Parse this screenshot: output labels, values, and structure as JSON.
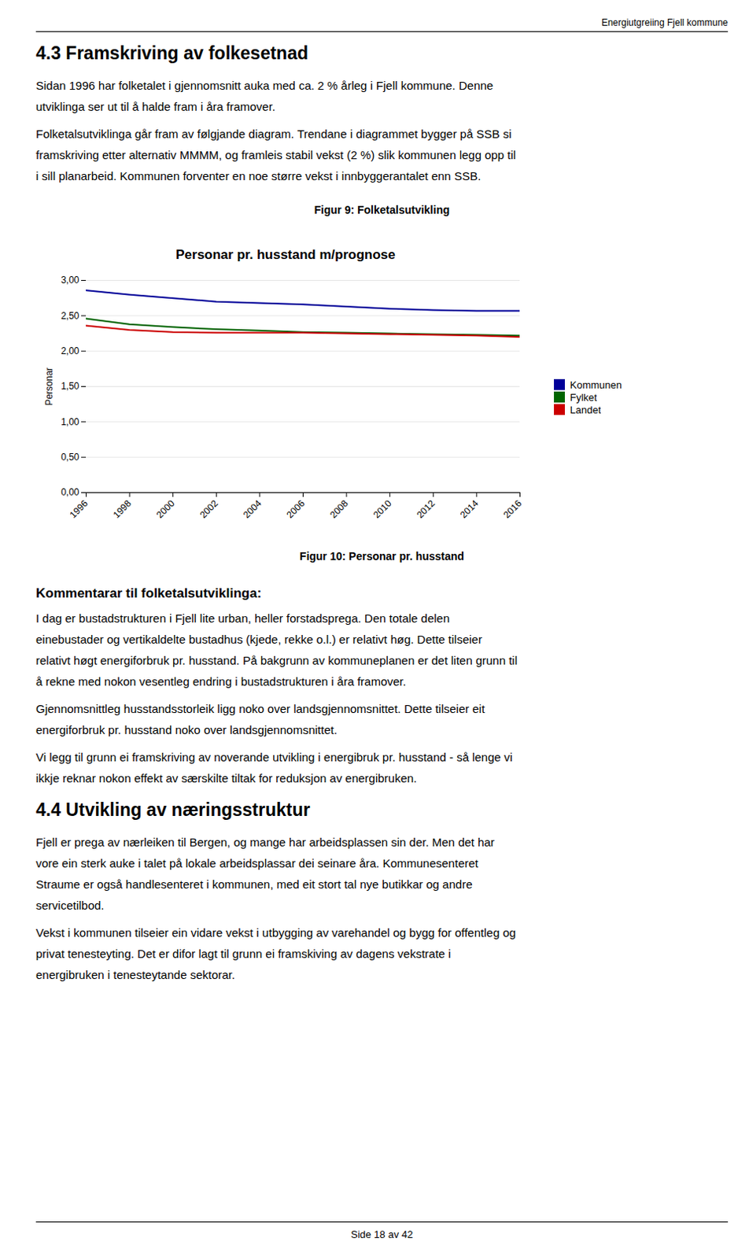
{
  "page": {
    "header": "Energiutgreiing Fjell kommune",
    "footer": "Side 18 av 42",
    "before": [
      {
        "heading": "4.3  Framskriving av folkesetnad"
      },
      {
        "paragraph": [
          "Sidan 1996 har folketalet i gjennomsnitt auka med ca. 2 % årleg i Fjell kommune. Denne",
          "utviklinga ser ut til å halde fram i åra framover."
        ]
      },
      {
        "paragraph": [
          "Folketalsutviklinga går fram av følgjande diagram. Trendane i diagrammet bygger på SSB si",
          "framskriving etter alternativ MMMM, og framleis stabil vekst (2 %) slik kommunen legg opp til",
          "i sill planarbeid. Kommunen forventer en noe større vekst i innbyggerantalet enn SSB."
        ]
      },
      {
        "caption": "Figur 9: Folketalsutvikling"
      }
    ],
    "after": [
      {
        "caption": "Figur 10: Personar pr. husstand"
      },
      {
        "subheading": "Kommentarar til folketalsutviklinga:"
      },
      {
        "paragraph": [
          "I dag er bustadstrukturen i Fjell lite urban, heller forstadsprega. Den totale delen",
          "einebustader og vertikaldelte bustadhus (kjede, rekke o.l.) er relativt høg. Dette tilseier",
          "relativt høgt energiforbruk pr. husstand. På bakgrunn av kommuneplanen er det liten grunn til",
          "å rekne med nokon vesentleg endring i bustadstrukturen i åra framover."
        ]
      },
      {
        "paragraph": [
          "Gjennomsnittleg husstandsstorleik ligg noko over landsgjennomsnittet. Dette tilseier eit",
          "energiforbruk pr. husstand noko over landsgjennomsnittet."
        ]
      },
      {
        "paragraph": [
          "Vi legg til grunn ei framskriving av noverande utvikling i energibruk pr. husstand - så lenge vi",
          "ikkje reknar nokon effekt av særskilte tiltak for reduksjon av energibruken."
        ]
      },
      {
        "heading": "4.4  Utvikling av næringsstruktur"
      },
      {
        "paragraph": [
          "Fjell er prega av nærleiken til Bergen, og mange har arbeidsplassen sin der. Men det har",
          "vore ein sterk auke i talet på lokale arbeidsplassar dei seinare åra. Kommunesenteret",
          "Straume er også handlesenteret i kommunen, med eit stort tal nye butikkar og andre",
          "servicetilbod."
        ]
      },
      {
        "paragraph": [
          "Vekst i kommunen tilseier ein vidare vekst i utbygging av varehandel og bygg for offentleg og",
          "privat tenesteyting. Det er difor lagt til grunn ei framskiving av dagens vekstrate i",
          "energibruken i tenesteytande sektorar."
        ]
      }
    ]
  },
  "chart_data": {
    "type": "line",
    "title": "Personar pr. husstand m/prognose",
    "ylabel": "Personar",
    "x": [
      1996,
      1998,
      2000,
      2002,
      2004,
      2006,
      2008,
      2010,
      2012,
      2014,
      2016
    ],
    "xlim": [
      1996,
      2016
    ],
    "xticks": [
      1996,
      1998,
      2000,
      2002,
      2004,
      2006,
      2008,
      2010,
      2012,
      2014,
      2016
    ],
    "ylim": [
      0.0,
      3.0
    ],
    "yticks": [
      {
        "value": 0.0,
        "label": "0,00"
      },
      {
        "value": 0.5,
        "label": "0,50"
      },
      {
        "value": 1.0,
        "label": "1,00"
      },
      {
        "value": 1.5,
        "label": "1,50"
      },
      {
        "value": 2.0,
        "label": "2,00"
      },
      {
        "value": 2.5,
        "label": "2,50"
      },
      {
        "value": 3.0,
        "label": "3,00"
      }
    ],
    "grid": true,
    "legend": "right",
    "series": [
      {
        "name": "Kommunen",
        "color": "#000099",
        "values": [
          2.86,
          2.8,
          2.75,
          2.7,
          2.68,
          2.66,
          2.63,
          2.6,
          2.58,
          2.57,
          2.57
        ]
      },
      {
        "name": "Fylket",
        "color": "#006400",
        "values": [
          2.46,
          2.38,
          2.34,
          2.31,
          2.29,
          2.27,
          2.26,
          2.25,
          2.24,
          2.23,
          2.22
        ]
      },
      {
        "name": "Landet",
        "color": "#cc0000",
        "values": [
          2.36,
          2.3,
          2.27,
          2.26,
          2.26,
          2.26,
          2.25,
          2.24,
          2.23,
          2.22,
          2.2
        ]
      }
    ]
  }
}
